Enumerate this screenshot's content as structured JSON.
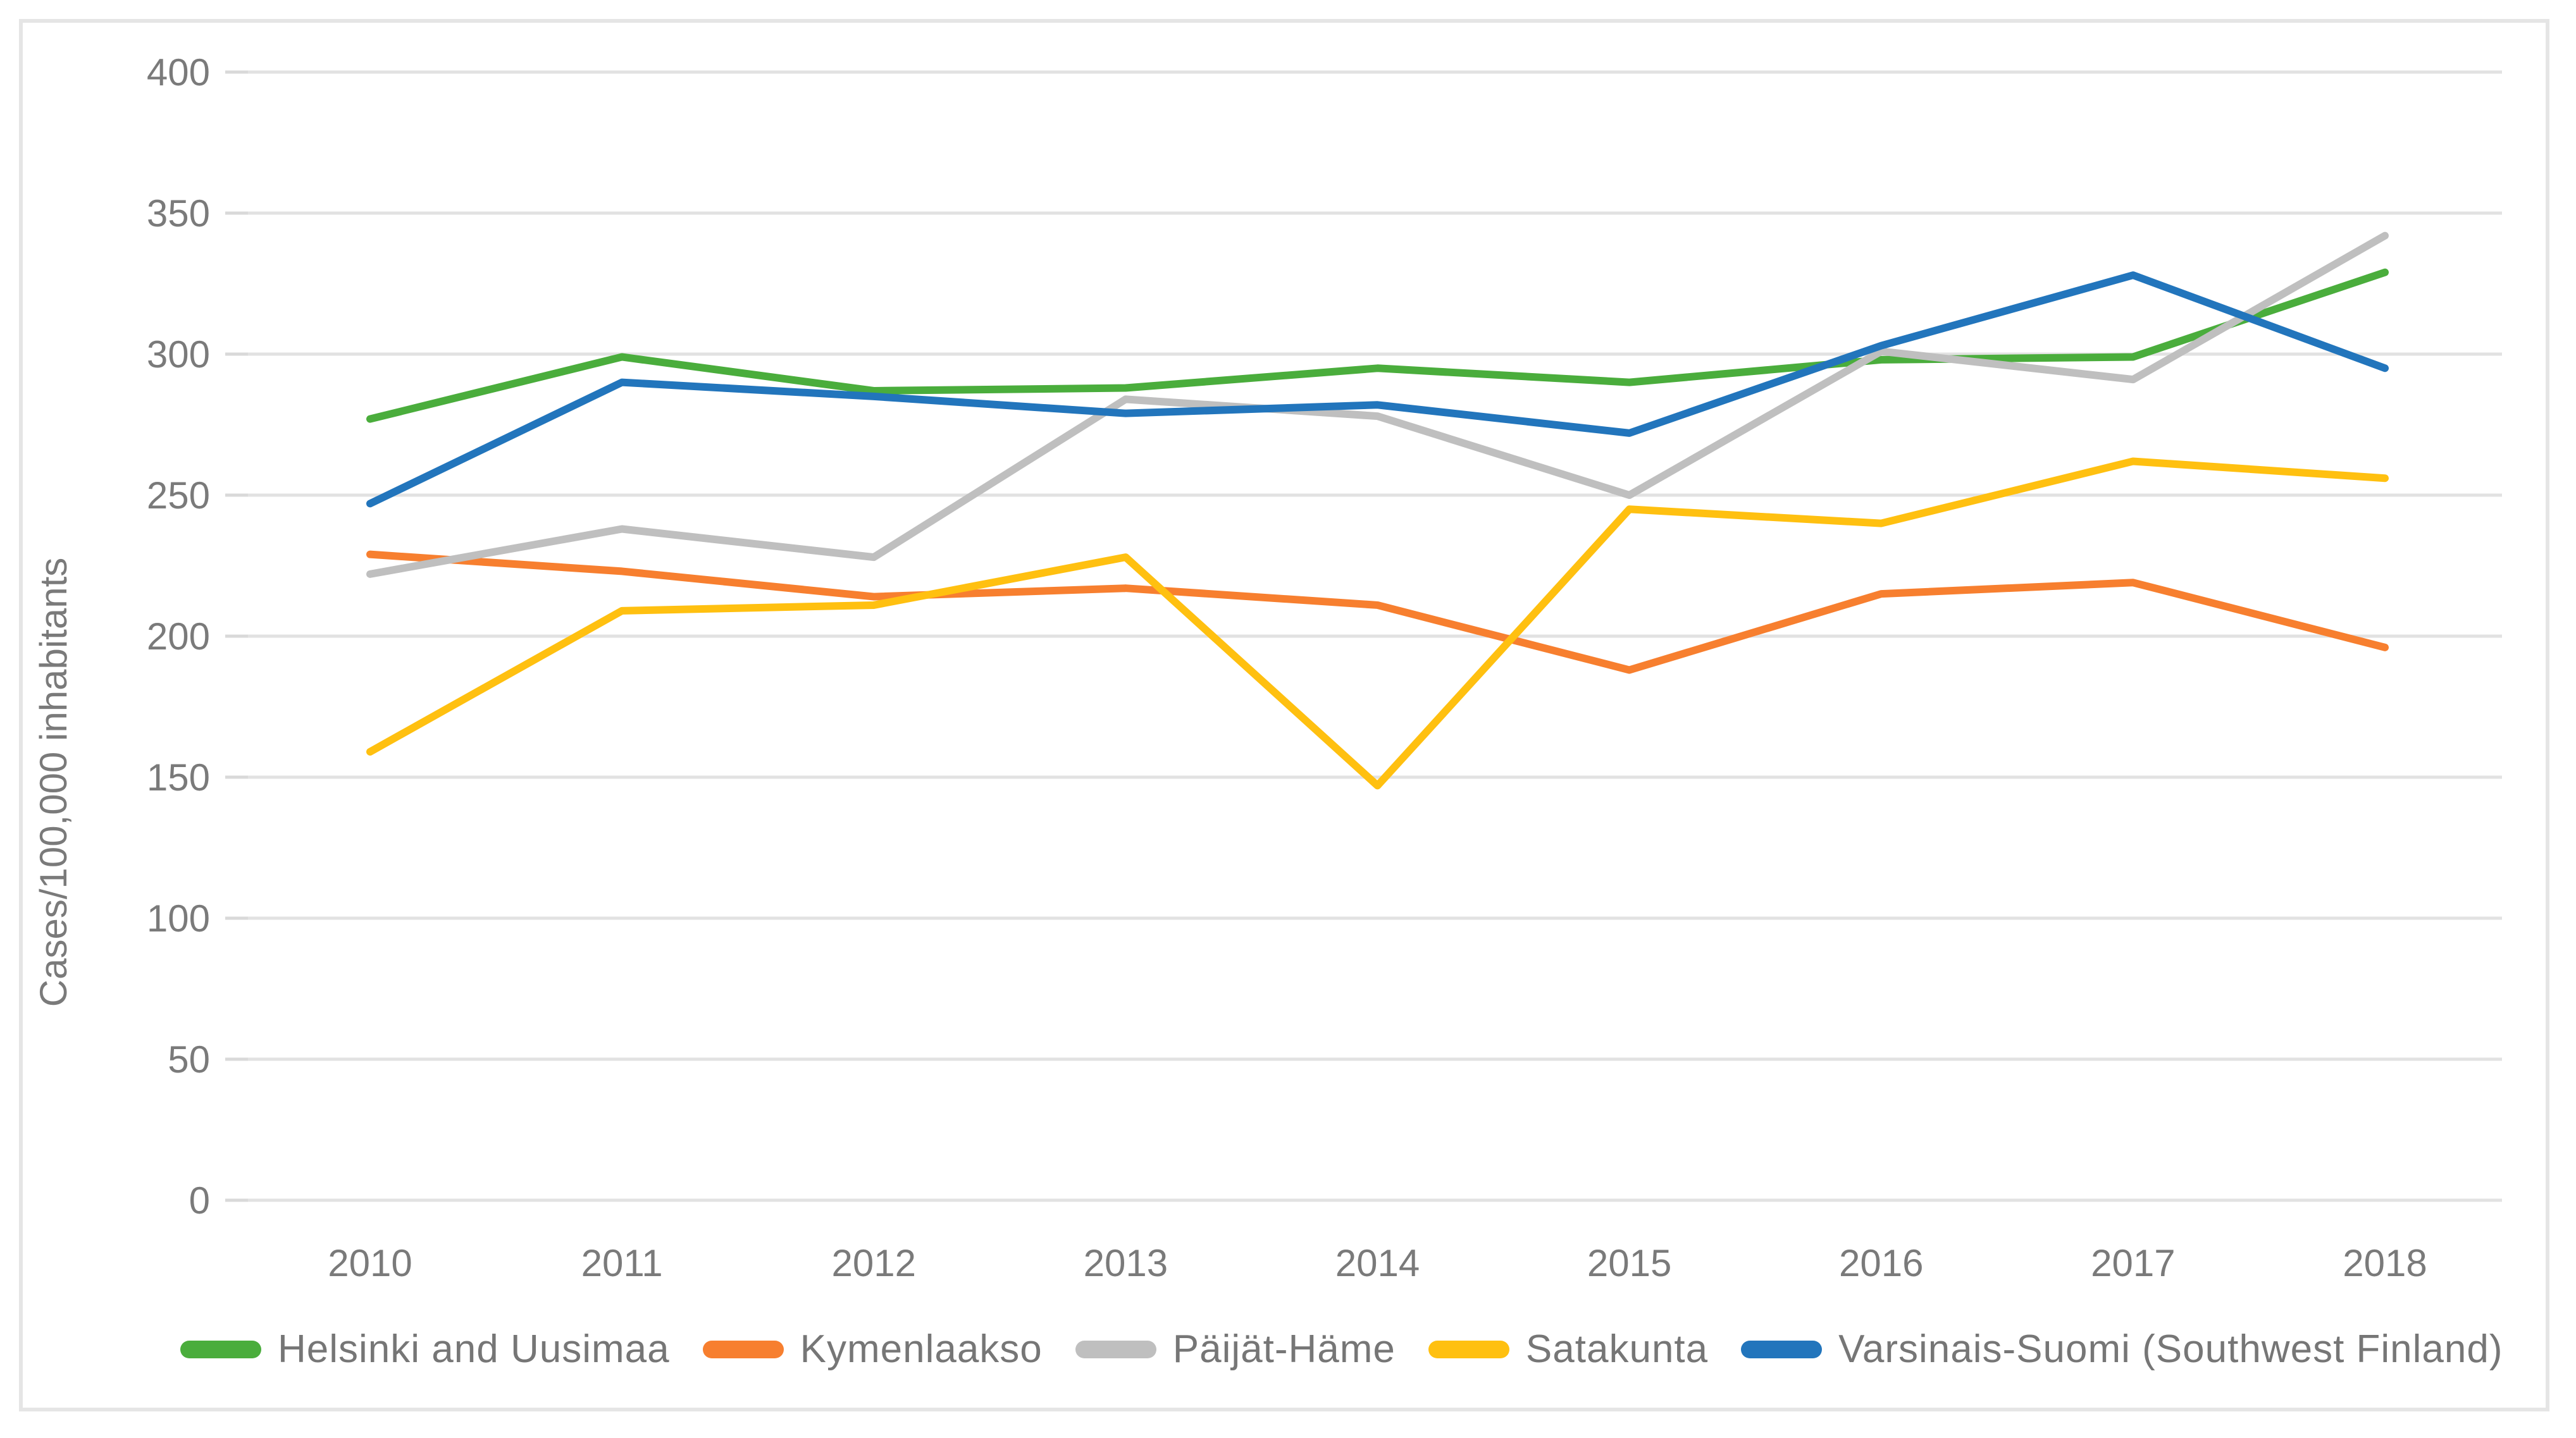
{
  "chart_data": {
    "type": "line",
    "title": "",
    "xlabel": "",
    "ylabel": "Cases/100,000 inhabitants",
    "x": [
      2010,
      2011,
      2012,
      2013,
      2014,
      2015,
      2016,
      2017,
      2018
    ],
    "yticks": [
      0,
      50,
      100,
      150,
      200,
      250,
      300,
      350,
      400
    ],
    "ylim": [
      0,
      400
    ],
    "grid": "horizontal",
    "legend_position": "bottom",
    "series": [
      {
        "name": "Helsinki and Uusimaa",
        "color": "#4aad3c",
        "values": [
          277,
          299,
          287,
          288,
          295,
          290,
          298,
          299,
          329
        ]
      },
      {
        "name": "Kymenlaakso",
        "color": "#f77f2f",
        "values": [
          229,
          223,
          214,
          217,
          211,
          188,
          215,
          219,
          196
        ]
      },
      {
        "name": "Päijät-Häme",
        "color": "#bfbfbf",
        "values": [
          222,
          238,
          228,
          284,
          278,
          250,
          301,
          291,
          342
        ]
      },
      {
        "name": "Satakunta",
        "color": "#ffc010",
        "values": [
          159,
          209,
          211,
          228,
          147,
          245,
          240,
          262,
          256
        ]
      },
      {
        "name": "Varsinais-Suomi (Southwest Finland)",
        "color": "#2275bc",
        "values": [
          247,
          290,
          285,
          279,
          282,
          272,
          303,
          328,
          295
        ]
      }
    ],
    "styling": {
      "grid_color": "#e2e2e2",
      "tick_color": "#d9d9d9",
      "label_color": "#7a7a7a",
      "frame_color": "#e5e5e5"
    }
  }
}
